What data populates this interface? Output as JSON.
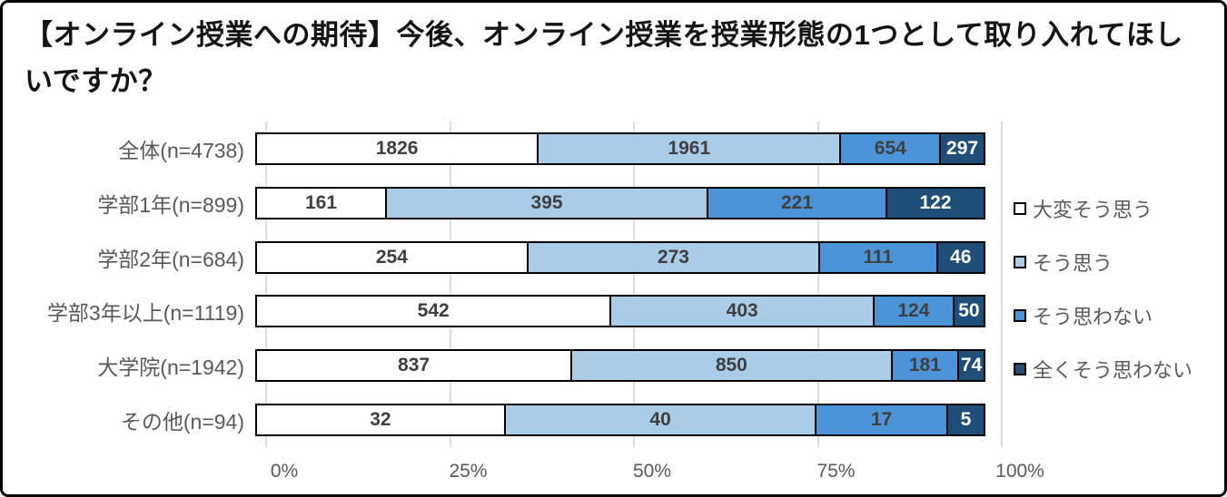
{
  "title": "【オンライン授業への期待】今後、オンライン授業を授業形態の1つとして取り入れてほしいですか？",
  "chart_data": {
    "type": "bar",
    "orientation": "horizontal",
    "stacked": true,
    "normalized_to_100_percent": true,
    "categories": [
      "全体(n=4738)",
      "学部1年(n=899)",
      "学部2年(n=684)",
      "学部3年以上(n=1119)",
      "大学院(n=1942)",
      "その他(n=94)"
    ],
    "category_totals": [
      4738,
      899,
      684,
      1119,
      1942,
      94
    ],
    "series": [
      {
        "name": "大変そう思う",
        "color": "#ffffff",
        "text_color": "#3f3f3f",
        "values": [
          1826,
          161,
          254,
          542,
          837,
          32
        ]
      },
      {
        "name": "そう思う",
        "color": "#a9cce9",
        "text_color": "#3f3f3f",
        "values": [
          1961,
          395,
          273,
          403,
          850,
          40
        ]
      },
      {
        "name": "そう思わない",
        "color": "#4b94d8",
        "text_color": "#3f3f3f",
        "values": [
          654,
          221,
          111,
          124,
          181,
          17
        ]
      },
      {
        "name": "全くそう思わない",
        "color": "#1f4e79",
        "text_color": "#ffffff",
        "values": [
          297,
          122,
          46,
          50,
          74,
          5
        ]
      }
    ],
    "x_axis": {
      "tick_labels": [
        "0%",
        "25%",
        "50%",
        "75%",
        "100%"
      ],
      "tick_positions": [
        0,
        25,
        50,
        75,
        100
      ],
      "range": [
        0,
        100
      ]
    },
    "legend_position": "right",
    "grid": true
  },
  "colors": {
    "bar_border": "#000000",
    "gridline": "#dcdcdc",
    "axis_text": "#595959",
    "category_text": "#595959",
    "legend_text": "#595959",
    "title_text": "#141414",
    "frame_border": "#000000",
    "background": "#ffffff"
  }
}
